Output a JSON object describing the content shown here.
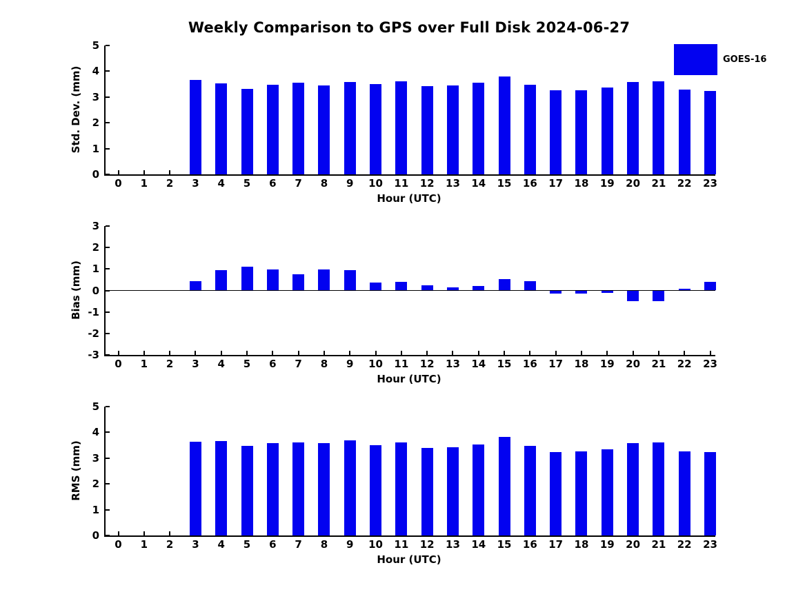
{
  "title": "Weekly Comparison to GPS over Full Disk 2024-06-27",
  "legend": {
    "label": "GOES-16",
    "color": "#0202f0"
  },
  "colors": {
    "bar": "#0202f0",
    "axis": "#000000",
    "background": "#ffffff"
  },
  "chart_data": [
    {
      "type": "bar",
      "ylabel": "Std. Dev. (mm)",
      "xlabel": "Hour (UTC)",
      "ylim": [
        0,
        5
      ],
      "yticks": [
        0,
        1,
        2,
        3,
        4,
        5
      ],
      "categories": [
        0,
        1,
        2,
        3,
        4,
        5,
        6,
        7,
        8,
        9,
        10,
        11,
        12,
        13,
        14,
        15,
        16,
        17,
        18,
        19,
        20,
        21,
        22,
        23
      ],
      "grid": false,
      "legend_position": "upper right",
      "series": [
        {
          "name": "GOES-16",
          "values": [
            null,
            null,
            null,
            3.65,
            3.52,
            3.32,
            3.47,
            3.55,
            3.44,
            3.58,
            3.5,
            3.6,
            3.41,
            3.44,
            3.55,
            3.79,
            3.47,
            3.26,
            3.26,
            3.37,
            3.57,
            3.6,
            3.29,
            3.23
          ]
        }
      ]
    },
    {
      "type": "bar",
      "ylabel": "Bias (mm)",
      "xlabel": "Hour (UTC)",
      "ylim": [
        -3,
        3
      ],
      "yticks": [
        -3,
        -2,
        -1,
        0,
        1,
        2,
        3
      ],
      "categories": [
        0,
        1,
        2,
        3,
        4,
        5,
        6,
        7,
        8,
        9,
        10,
        11,
        12,
        13,
        14,
        15,
        16,
        17,
        18,
        19,
        20,
        21,
        22,
        23
      ],
      "grid": false,
      "zero_line": true,
      "series": [
        {
          "name": "GOES-16",
          "values": [
            null,
            null,
            null,
            0.42,
            0.95,
            1.1,
            0.98,
            0.76,
            0.98,
            0.95,
            0.38,
            0.41,
            0.25,
            0.14,
            0.22,
            0.52,
            0.42,
            -0.16,
            -0.16,
            -0.12,
            -0.5,
            -0.5,
            0.08,
            0.41
          ]
        }
      ]
    },
    {
      "type": "bar",
      "ylabel": "RMS (mm)",
      "xlabel": "Hour (UTC)",
      "ylim": [
        0,
        5
      ],
      "yticks": [
        0,
        1,
        2,
        3,
        4,
        5
      ],
      "categories": [
        0,
        1,
        2,
        3,
        4,
        5,
        6,
        7,
        8,
        9,
        10,
        11,
        12,
        13,
        14,
        15,
        16,
        17,
        18,
        19,
        20,
        21,
        22,
        23
      ],
      "grid": false,
      "series": [
        {
          "name": "GOES-16",
          "values": [
            null,
            null,
            null,
            3.64,
            3.65,
            3.48,
            3.58,
            3.61,
            3.59,
            3.7,
            3.51,
            3.61,
            3.4,
            3.42,
            3.53,
            3.82,
            3.48,
            3.24,
            3.27,
            3.35,
            3.58,
            3.62,
            3.25,
            3.24
          ]
        }
      ]
    }
  ]
}
